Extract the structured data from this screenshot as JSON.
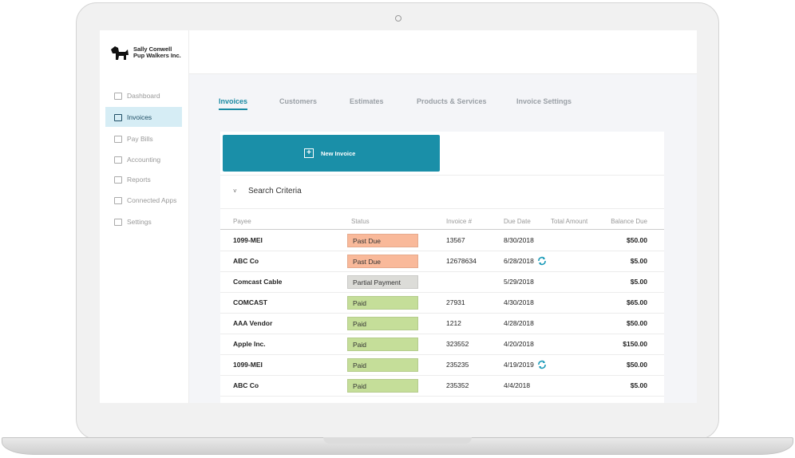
{
  "sidebar": {
    "company_name": [
      "Sally Conwell",
      "Pup Walkers Inc."
    ],
    "nav": [
      "Dashboard",
      "Invoices",
      "Pay Bills",
      "Accounting",
      "Reports",
      "Connected Apps",
      "Settings"
    ],
    "active_nav": 1
  },
  "tabs": {
    "items": [
      "Invoices",
      "Customers",
      "Estimates",
      "Products & Services",
      "Invoice Settings"
    ],
    "active": 0
  },
  "new_invoice_button": "New Invoice",
  "search_criteria": "Search Criteria",
  "table": {
    "columns": [
      "Payee",
      "Status",
      "Invoice #",
      "Due Date",
      "Total Amount",
      "Balance Due"
    ],
    "rows": [
      {
        "payee": "1099-MEI",
        "status": "Past Due",
        "badge_color": "#f9b99a",
        "invoice": "13567",
        "due": "8/30/2018",
        "balance": "$50.00"
      },
      {
        "payee": "ABC Co",
        "status": "Past Due",
        "badge_color": "#f9b99a",
        "invoice": "12678634",
        "due": "6/28/2018",
        "balance": "$5.00"
      },
      {
        "payee": "Comcast Cable",
        "status": "Partial Payment",
        "badge_color": "#dcdcd8",
        "due": "5/29/2018",
        "balance": "$5.00"
      },
      {
        "payee": "COMCAST",
        "status": "Paid",
        "badge_color": "#c5de99",
        "invoice": "27931",
        "due": "4/30/2018",
        "balance": "$65.00"
      },
      {
        "payee": "AAA Vendor",
        "status": "Paid",
        "badge_color": "#c5de99",
        "invoice": "1212",
        "due": "4/28/2018",
        "balance": "$50.00"
      },
      {
        "payee": "Apple Inc.",
        "status": "Paid",
        "badge_color": "#c5de99",
        "invoice": "323552",
        "due": "4/20/2018",
        "balance": "$150.00"
      },
      {
        "payee": "1099-MEI",
        "status": "Paid",
        "badge_color": "#c5de99",
        "invoice": "235235",
        "due": "4/19/2019",
        "balance": "$50.00"
      },
      {
        "payee": "ABC Co",
        "status": "Paid",
        "badge_color": "#c5de99",
        "invoice": "235352",
        "due": "4/4/2018",
        "balance": "$5.00"
      }
    ]
  }
}
